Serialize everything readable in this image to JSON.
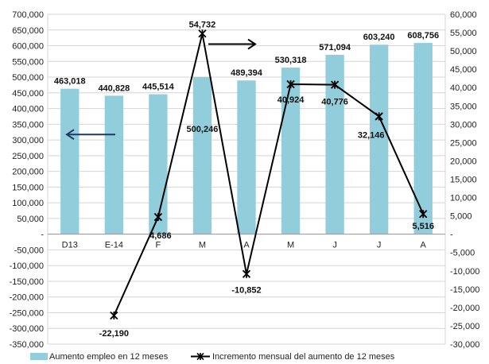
{
  "chart_data": {
    "type": "bar",
    "categories": [
      "D13",
      "E-14",
      "F",
      "M",
      "A",
      "M",
      "J",
      "J",
      "A"
    ],
    "series": [
      {
        "name": "Aumento empleo en 12 meses",
        "type": "bar",
        "axis": "left",
        "color": "#92CDDC",
        "values": [
          463018,
          440828,
          445514,
          500246,
          489394,
          530318,
          571094,
          603240,
          608756
        ],
        "labels": [
          "463,018",
          "440,828",
          "445,514",
          "500,246",
          "489,394",
          "530,318",
          "571,094",
          "603,240",
          "608,756"
        ]
      },
      {
        "name": "Incremento mensual del aumento de 12 meses",
        "type": "line",
        "axis": "right",
        "color": "#000000",
        "marker": "asterisk",
        "values": [
          null,
          -22190,
          4686,
          54732,
          -10852,
          40924,
          40776,
          32146,
          5516
        ],
        "labels": [
          "",
          "-22,190",
          "4,686",
          "54,732",
          "-10,852",
          "40,924",
          "40,776",
          "32,146",
          "5,516"
        ]
      }
    ],
    "left_axis": {
      "ylim": [
        -350000,
        700000
      ],
      "step": 50000,
      "tick_labels": [
        "700,000",
        "650,000",
        "600,000",
        "550,000",
        "500,000",
        "450,000",
        "400,000",
        "350,000",
        "300,000",
        "250,000",
        "200,000",
        "150,000",
        "100,000",
        "50,000",
        "-",
        "-50,000",
        "-100,000",
        "-150,000",
        "-200,000",
        "-250,000",
        "-300,000",
        "-350,000"
      ]
    },
    "right_axis": {
      "ylim": [
        -30000,
        60000
      ],
      "step": 5000,
      "tick_labels": [
        "60,000",
        "55,000",
        "50,000",
        "45,000",
        "40,000",
        "35,000",
        "30,000",
        "25,000",
        "20,000",
        "15,000",
        "10,000",
        "5,000",
        "-",
        "-5,000",
        "-10,000",
        "-15,000",
        "-20,000",
        "-25,000",
        "-30,000"
      ]
    },
    "annotations": [
      {
        "type": "arrow",
        "direction": "left",
        "points_to": "left-axis"
      },
      {
        "type": "arrow",
        "direction": "right",
        "points_to": "right-axis"
      }
    ],
    "grid": true,
    "legend": "bottom"
  }
}
